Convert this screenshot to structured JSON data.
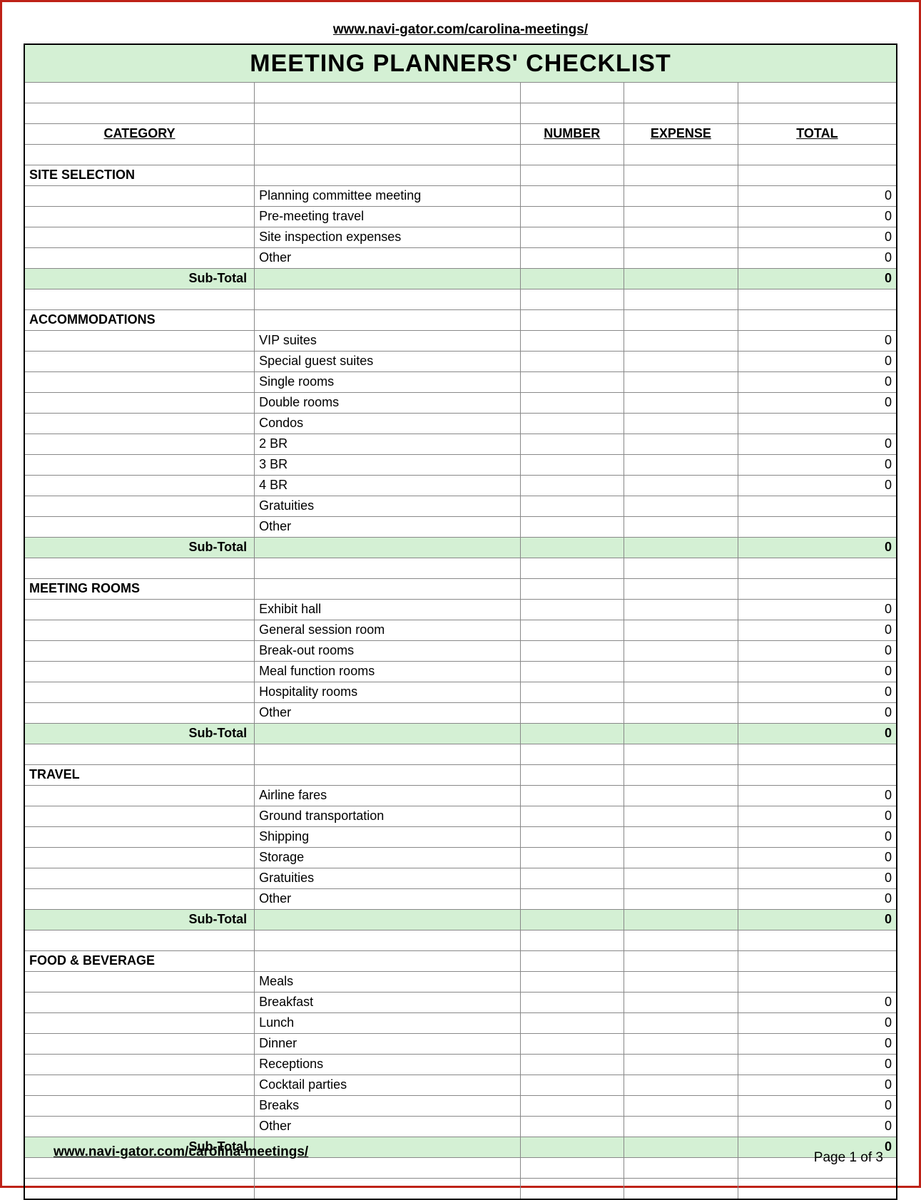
{
  "url": "www.navi-gator.com/carolina-meetings/",
  "page_label": "Page 1 of 3",
  "title": "MEETING  PLANNERS'  CHECKLIST",
  "colors": {
    "frame_border": "#be2217",
    "accent_bg": "#d4f0d4",
    "grid": "#888888",
    "outer_grid": "#000000",
    "text": "#000000"
  },
  "columns": {
    "category": "CATEGORY",
    "number": "NUMBER",
    "expense": "EXPENSE",
    "total": "TOTAL"
  },
  "subtotal_label": "Sub-Total",
  "sections": [
    {
      "name": "SITE SELECTION",
      "items": [
        {
          "label": "Planning committee meeting",
          "total": "0"
        },
        {
          "label": "Pre-meeting travel",
          "total": "0"
        },
        {
          "label": "Site inspection expenses",
          "total": "0"
        },
        {
          "label": "Other",
          "total": "0"
        }
      ],
      "subtotal": "0"
    },
    {
      "name": "ACCOMMODATIONS",
      "items": [
        {
          "label": "VIP suites",
          "total": "0"
        },
        {
          "label": "Special guest suites",
          "total": "0"
        },
        {
          "label": "Single rooms",
          "total": "0"
        },
        {
          "label": "Double rooms",
          "total": "0"
        },
        {
          "label": "Condos",
          "total": ""
        },
        {
          "label": "2 BR",
          "indent": true,
          "total": "0"
        },
        {
          "label": "3 BR",
          "indent": true,
          "total": "0"
        },
        {
          "label": "4 BR",
          "indent": true,
          "total": "0"
        },
        {
          "label": "Gratuities",
          "total": ""
        },
        {
          "label": "Other",
          "total": ""
        }
      ],
      "subtotal": "0"
    },
    {
      "name": "MEETING ROOMS",
      "items": [
        {
          "label": "Exhibit hall",
          "total": "0"
        },
        {
          "label": "General session room",
          "total": "0"
        },
        {
          "label": "Break-out rooms",
          "total": "0"
        },
        {
          "label": "Meal function rooms",
          "total": "0"
        },
        {
          "label": "Hospitality rooms",
          "total": "0"
        },
        {
          "label": "Other",
          "total": "0"
        }
      ],
      "subtotal": "0"
    },
    {
      "name": "TRAVEL",
      "items": [
        {
          "label": "Airline fares",
          "total": "0"
        },
        {
          "label": "Ground transportation",
          "total": "0"
        },
        {
          "label": "Shipping",
          "total": "0"
        },
        {
          "label": "Storage",
          "total": "0"
        },
        {
          "label": "Gratuities",
          "total": "0"
        },
        {
          "label": "Other",
          "total": "0"
        }
      ],
      "subtotal": "0"
    },
    {
      "name": "FOOD & BEVERAGE",
      "items": [
        {
          "label": "Meals",
          "total": ""
        },
        {
          "label": "Breakfast",
          "indent": true,
          "total": "0"
        },
        {
          "label": "Lunch",
          "indent": true,
          "total": "0"
        },
        {
          "label": "Dinner",
          "indent": true,
          "total": "0"
        },
        {
          "label": "Receptions",
          "total": "0"
        },
        {
          "label": "Cocktail parties",
          "total": "0"
        },
        {
          "label": "Breaks",
          "total": "0"
        },
        {
          "label": "Other",
          "total": "0"
        }
      ],
      "subtotal": "0"
    }
  ]
}
